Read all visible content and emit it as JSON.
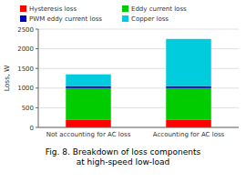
{
  "chart_data": {
    "type": "bar",
    "stacked": true,
    "caption": "Fig. 8. Breakdown of loss components\nat high-speed low-load",
    "ylabel": "Loss, W",
    "categories": [
      "Not accounting for AC loss",
      "Accounting for AC loss"
    ],
    "series": [
      {
        "name": "Hysteresis loss",
        "color": "#FF0000",
        "values": [
          200,
          200
        ]
      },
      {
        "name": "Eddy current loss",
        "color": "#00CC00",
        "values": [
          800,
          800
        ]
      },
      {
        "name": "PWM eddy current loss",
        "color": "#0000BB",
        "values": [
          50,
          50
        ]
      },
      {
        "name": "Copper loss",
        "color": "#00CCDD",
        "values": [
          300,
          1200
        ]
      }
    ],
    "ylim": [
      0,
      2500
    ],
    "yticks": [
      0,
      500,
      1000,
      1500,
      2000,
      2500
    ],
    "grid": true,
    "legend": "top"
  }
}
